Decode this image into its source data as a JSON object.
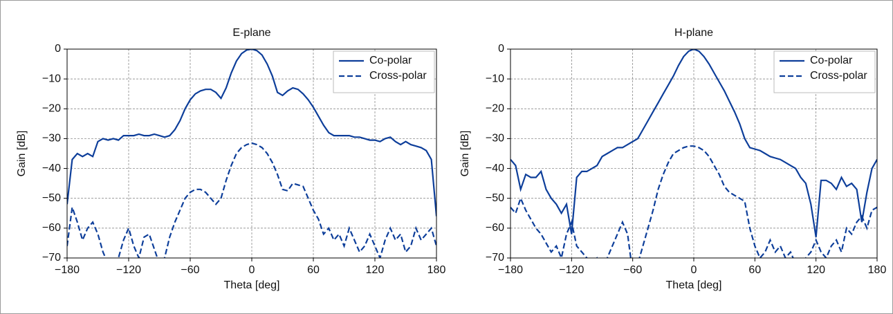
{
  "chart_data": [
    {
      "type": "line",
      "title": "E-plane",
      "xlabel": "Theta [deg]",
      "ylabel": "Gain [dB]",
      "x": [
        -180,
        -175,
        -170,
        -165,
        -160,
        -155,
        -150,
        -145,
        -140,
        -135,
        -130,
        -125,
        -120,
        -115,
        -110,
        -105,
        -100,
        -95,
        -90,
        -85,
        -80,
        -75,
        -70,
        -65,
        -60,
        -55,
        -50,
        -45,
        -40,
        -35,
        -30,
        -25,
        -20,
        -15,
        -10,
        -5,
        0,
        5,
        10,
        15,
        20,
        25,
        30,
        35,
        40,
        45,
        50,
        55,
        60,
        65,
        70,
        75,
        80,
        85,
        90,
        95,
        100,
        105,
        110,
        115,
        120,
        125,
        130,
        135,
        140,
        145,
        150,
        155,
        160,
        165,
        170,
        175,
        180
      ],
      "series": [
        {
          "name": "Co-polar",
          "color": "#0d3e9a",
          "linestyle": "solid",
          "values": [
            -52,
            -37,
            -35,
            -36,
            -35,
            -36,
            -31,
            -30,
            -30.5,
            -30,
            -30.5,
            -29,
            -29,
            -29,
            -28.5,
            -29,
            -29,
            -28.5,
            -29,
            -29.5,
            -29,
            -27,
            -24,
            -20,
            -17,
            -15,
            -14,
            -13.5,
            -13.5,
            -14.5,
            -16.5,
            -13,
            -8,
            -4,
            -1.5,
            -0.3,
            0,
            -0.5,
            -2,
            -5,
            -9,
            -14.5,
            -15.5,
            -14,
            -13,
            -13.5,
            -15,
            -17,
            -19.5,
            -22.5,
            -25.5,
            -28,
            -29,
            -29,
            -29,
            -29,
            -29.5,
            -29.5,
            -30,
            -30.5,
            -30.5,
            -31,
            -30,
            -29.5,
            -31,
            -32,
            -31,
            -32,
            -32.5,
            -33,
            -34,
            -37,
            -56
          ]
        },
        {
          "name": "Cross-polar",
          "color": "#0d3e9a",
          "linestyle": "dashed",
          "values": [
            -66,
            -53,
            -58,
            -64,
            -60,
            -58,
            -62,
            -68,
            -72,
            -75,
            -70,
            -64,
            -60,
            -66,
            -70,
            -63,
            -62,
            -67,
            -72,
            -70,
            -63,
            -58,
            -54,
            -50,
            -48,
            -47,
            -47,
            -48,
            -50,
            -52,
            -50,
            -44,
            -39,
            -35,
            -33,
            -32,
            -31.5,
            -32,
            -33,
            -35,
            -38,
            -42,
            -47,
            -47.5,
            -45,
            -45.5,
            -46,
            -50,
            -54,
            -57,
            -62,
            -60,
            -64,
            -62,
            -66,
            -60,
            -64,
            -68,
            -66,
            -62,
            -66,
            -70,
            -64,
            -60,
            -64,
            -62,
            -68,
            -66,
            -60,
            -64,
            -62,
            -60,
            -66
          ]
        }
      ],
      "xlim": [
        -180,
        180
      ],
      "ylim": [
        -70,
        0
      ],
      "xticks": [
        {
          "value": -180,
          "label": "−180"
        },
        {
          "value": -120,
          "label": "−120"
        },
        {
          "value": -60,
          "label": "−60"
        },
        0,
        60,
        120,
        180
      ],
      "yticks": [
        0,
        {
          "value": -10,
          "label": "−10"
        },
        {
          "value": -20,
          "label": "−20"
        },
        {
          "value": -30,
          "label": "−30"
        },
        {
          "value": -40,
          "label": "−40"
        },
        {
          "value": -50,
          "label": "−50"
        },
        {
          "value": -60,
          "label": "−60"
        },
        {
          "value": -70,
          "label": "−70"
        }
      ],
      "grid": true,
      "legend": "upper right"
    },
    {
      "type": "line",
      "title": "H-plane",
      "xlabel": "Theta [deg]",
      "ylabel": "Gain [dB]",
      "x": [
        -180,
        -175,
        -170,
        -165,
        -160,
        -155,
        -150,
        -145,
        -140,
        -135,
        -130,
        -125,
        -120,
        -115,
        -110,
        -105,
        -100,
        -95,
        -90,
        -85,
        -80,
        -75,
        -70,
        -65,
        -60,
        -55,
        -50,
        -45,
        -40,
        -35,
        -30,
        -25,
        -20,
        -15,
        -10,
        -5,
        0,
        5,
        10,
        15,
        20,
        25,
        30,
        35,
        40,
        45,
        50,
        55,
        60,
        65,
        70,
        75,
        80,
        85,
        90,
        95,
        100,
        105,
        110,
        115,
        120,
        125,
        130,
        135,
        140,
        145,
        150,
        155,
        160,
        165,
        170,
        175,
        180
      ],
      "series": [
        {
          "name": "Co-polar",
          "color": "#0d3e9a",
          "linestyle": "solid",
          "values": [
            -37,
            -39,
            -47,
            -42,
            -43,
            -43,
            -41,
            -47,
            -50,
            -52,
            -55,
            -52,
            -62,
            -43,
            -41,
            -41,
            -40,
            -39,
            -36,
            -35,
            -34,
            -33,
            -33,
            -32,
            -31,
            -30,
            -27,
            -24,
            -21,
            -18,
            -15,
            -12,
            -9,
            -5.5,
            -2.5,
            -0.7,
            0,
            -0.7,
            -2.5,
            -5,
            -8,
            -11,
            -14,
            -17.5,
            -21,
            -25,
            -30,
            -33,
            -33.5,
            -34,
            -35,
            -36,
            -36.5,
            -37,
            -38,
            -39,
            -40,
            -43,
            -45,
            -52,
            -63,
            -44,
            -44,
            -45,
            -47,
            -43,
            -46,
            -45,
            -47,
            -58,
            -48,
            -40,
            -37
          ]
        },
        {
          "name": "Cross-polar",
          "color": "#0d3e9a",
          "linestyle": "dashed",
          "values": [
            -53,
            -55,
            -50,
            -54,
            -57,
            -60,
            -62,
            -65,
            -68,
            -66,
            -70,
            -62,
            -58,
            -66,
            -68,
            -70,
            -72,
            -70,
            -73,
            -70,
            -66,
            -62,
            -58,
            -62,
            -75,
            -72,
            -66,
            -60,
            -54,
            -47,
            -42,
            -38,
            -35,
            -34,
            -33,
            -32.5,
            -32.5,
            -33,
            -34,
            -36,
            -39,
            -42,
            -46,
            -48,
            -49,
            -50,
            -51,
            -60,
            -66,
            -70,
            -68,
            -64,
            -68,
            -66,
            -70,
            -68,
            -72,
            -74,
            -70,
            -68,
            -64,
            -68,
            -70,
            -66,
            -64,
            -68,
            -60,
            -62,
            -58,
            -56,
            -60,
            -54,
            -53
          ]
        }
      ],
      "xlim": [
        -180,
        180
      ],
      "ylim": [
        -70,
        0
      ],
      "xticks": [
        {
          "value": -180,
          "label": "−180"
        },
        {
          "value": -120,
          "label": "−120"
        },
        {
          "value": -60,
          "label": "−60"
        },
        0,
        60,
        120,
        180
      ],
      "yticks": [
        0,
        {
          "value": -10,
          "label": "−10"
        },
        {
          "value": -20,
          "label": "−20"
        },
        {
          "value": -30,
          "label": "−30"
        },
        {
          "value": -40,
          "label": "−40"
        },
        {
          "value": -50,
          "label": "−50"
        },
        {
          "value": -60,
          "label": "−60"
        },
        {
          "value": -70,
          "label": "−70"
        }
      ],
      "grid": true,
      "legend": "upper right"
    }
  ]
}
